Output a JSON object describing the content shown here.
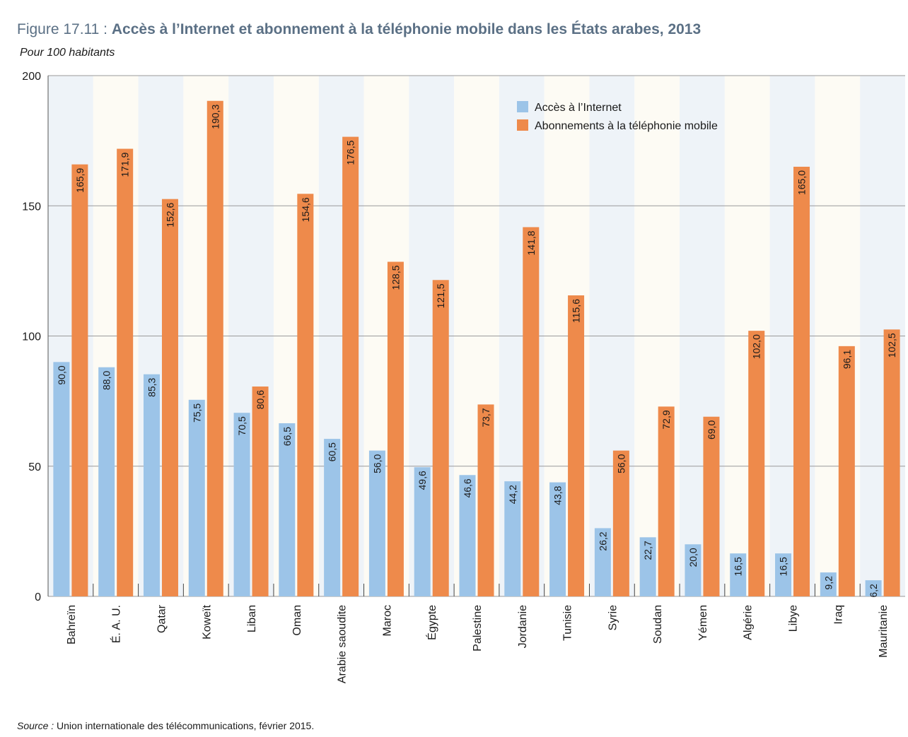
{
  "figure": {
    "number": "Figure 17.11 : ",
    "title": "Accès à l’Internet et abonnement à la téléphonie mobile dans les États arabes, 2013",
    "subtitle": "Pour 100 habitants"
  },
  "source": {
    "label": "Source :",
    "text": " Union internationale des télécommunications, février 2015."
  },
  "colors": {
    "internet": "#9cc4e8",
    "mobile": "#ee8a4b",
    "band_light": "#eef3f8",
    "band_alt": "#fdfbf4",
    "grid": "#9a9a9a"
  },
  "chart_data": {
    "type": "bar",
    "title": "Accès à l’Internet et abonnement à la téléphonie mobile dans les États arabes, 2013",
    "ylabel": "Pour 100 habitants",
    "xlabel": "",
    "ylim": [
      0,
      200
    ],
    "yticks": [
      0,
      50,
      100,
      150,
      200
    ],
    "grid": true,
    "legend_position": "top-right",
    "categories": [
      "Bahreïn",
      "É. A. U.",
      "Qatar",
      "Koweït",
      "Liban",
      "Oman",
      "Arabie saoudite",
      "Maroc",
      "Égypte",
      "Palestine",
      "Jordanie",
      "Tunisie",
      "Syrie",
      "Soudan",
      "Yémen",
      "Algérie",
      "Libye",
      "Iraq",
      "Mauritanie"
    ],
    "series": [
      {
        "name": "Accès à l’Internet",
        "values": [
          90.0,
          88.0,
          85.3,
          75.5,
          70.5,
          66.5,
          60.5,
          56.0,
          49.6,
          46.6,
          44.2,
          43.8,
          26.2,
          22.7,
          20.0,
          16.5,
          16.5,
          9.2,
          6.2
        ],
        "labels": [
          "90,0",
          "88,0",
          "85,3",
          "75,5",
          "70,5",
          "66,5",
          "60,5",
          "56,0",
          "49,6",
          "46,6",
          "44,2",
          "43,8",
          "26,2",
          "22,7",
          "20,0",
          "16,5",
          "16,5",
          "9,2",
          "6,2"
        ]
      },
      {
        "name": "Abonnements à la téléphonie mobile",
        "values": [
          165.9,
          171.9,
          152.6,
          190.3,
          80.6,
          154.6,
          176.5,
          128.5,
          121.5,
          73.7,
          141.8,
          115.6,
          56.0,
          72.9,
          69.0,
          102.0,
          165.0,
          96.1,
          102.5
        ],
        "labels": [
          "165,9",
          "171,9",
          "152,6",
          "190,3",
          "80,6",
          "154,6",
          "176,5",
          "128,5",
          "121,5",
          "73,7",
          "141,8",
          "115,6",
          "56,0",
          "72,9",
          "69,0",
          "102,0",
          "165,0",
          "96,1",
          "102,5"
        ]
      }
    ]
  }
}
